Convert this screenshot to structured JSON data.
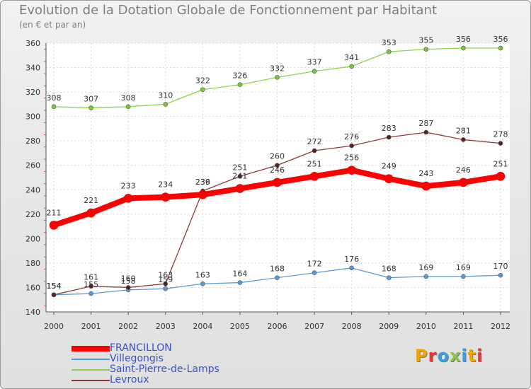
{
  "title": "Evolution de la Dotation Globale de Fonctionnement par Habitant",
  "subtitle": "(en € et par an)",
  "logo": {
    "text": "Proxiti",
    "letter_colors": [
      "#f0a500",
      "#e53935",
      "#3aa0e0",
      "#8bc34a",
      "#3aa0e0",
      "#f0a500",
      "#e53935"
    ]
  },
  "chart_data": {
    "type": "line",
    "title": "Evolution de la Dotation Globale de Fonctionnement par Habitant",
    "ylabel": "(en € et par an)",
    "xlabel": "",
    "x": [
      "2000",
      "2001",
      "2002",
      "2003",
      "2004",
      "2005",
      "2006",
      "2007",
      "2008",
      "2009",
      "2010",
      "2011",
      "2012"
    ],
    "ylim": [
      140,
      360
    ],
    "yticks": [
      140,
      160,
      180,
      200,
      220,
      240,
      260,
      280,
      300,
      320,
      340,
      360
    ],
    "grid": true,
    "legend_position": "bottom-left",
    "series": [
      {
        "name": "FRANCILLON",
        "color": "#ff0000",
        "values": [
          211,
          221,
          233,
          234,
          236,
          241,
          246,
          251,
          256,
          249,
          243,
          246,
          251
        ]
      },
      {
        "name": "Villegongis",
        "color": "#5b9bd5",
        "values": [
          154,
          155,
          158,
          159,
          163,
          164,
          168,
          172,
          176,
          168,
          169,
          169,
          170
        ]
      },
      {
        "name": "Saint-Pierre-de-Lamps",
        "color": "#8fd14f",
        "values": [
          308,
          307,
          308,
          310,
          322,
          326,
          332,
          337,
          341,
          353,
          355,
          356,
          356
        ]
      },
      {
        "name": "Levroux",
        "color": "#8b3a3a",
        "values": [
          154,
          161,
          160,
          163,
          239,
          251,
          260,
          272,
          276,
          283,
          287,
          281,
          278
        ]
      }
    ]
  }
}
